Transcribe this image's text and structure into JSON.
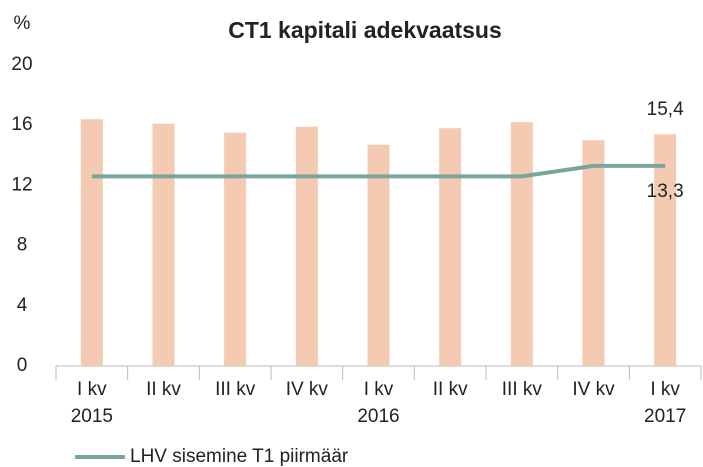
{
  "chart_data": {
    "type": "bar",
    "title": "CT1 kapitali adekvaatsus",
    "y_label": "%",
    "categories": [
      "I kv",
      "II kv",
      "III kv",
      "IV kv",
      "I kv",
      "II kv",
      "III kv",
      "IV kv",
      "I kv"
    ],
    "years": [
      "2015",
      null,
      null,
      null,
      "2016",
      null,
      null,
      null,
      "2017"
    ],
    "series": [
      {
        "type": "bar",
        "color": "#f5cab2",
        "values": [
          16.4,
          16.1,
          15.5,
          15.9,
          14.7,
          15.8,
          16.2,
          15.0,
          15.4
        ],
        "value_labels": [
          null,
          null,
          null,
          null,
          null,
          null,
          null,
          null,
          "15,4"
        ]
      },
      {
        "type": "line",
        "name": "LHV sisemine T1 piirmäär",
        "color": "#7aa59c",
        "values": [
          12.6,
          12.6,
          12.6,
          12.6,
          12.6,
          12.6,
          12.6,
          13.3,
          13.3
        ],
        "value_labels": [
          null,
          null,
          null,
          null,
          null,
          null,
          null,
          null,
          "13,3"
        ]
      }
    ],
    "ylim": [
      0,
      20
    ],
    "yticks": [
      0,
      4,
      8,
      12,
      16,
      20
    ],
    "grid": false,
    "legend": "bottom"
  }
}
